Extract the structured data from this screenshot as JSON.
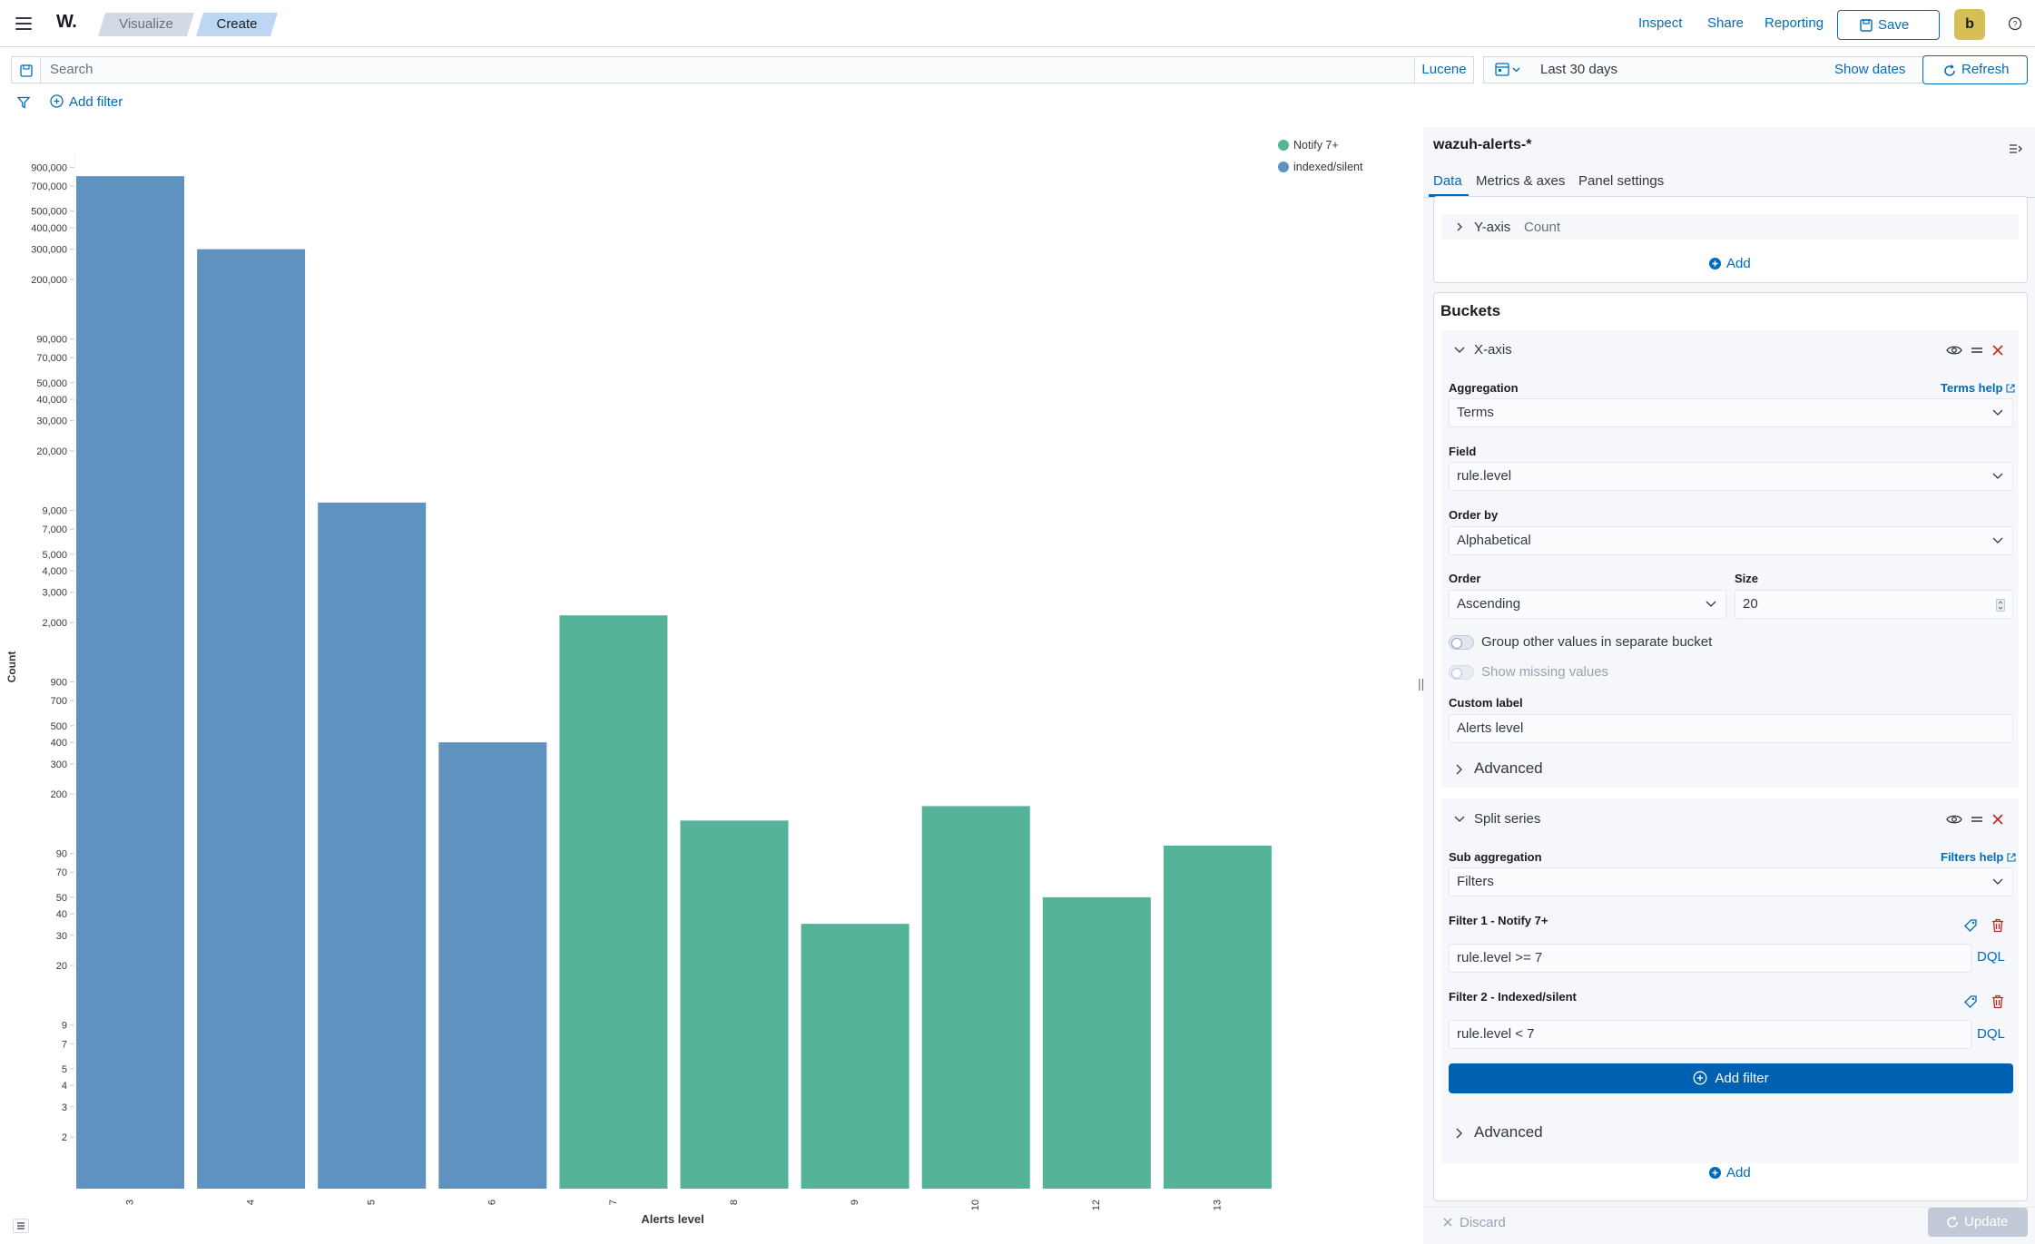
{
  "header": {
    "logo": "W.",
    "breadcrumbs": [
      "Visualize",
      "Create"
    ],
    "links": [
      "Inspect",
      "Share",
      "Reporting"
    ],
    "save_label": "Save",
    "avatar_initial": "b"
  },
  "query_bar": {
    "search_placeholder": "Search",
    "language": "Lucene",
    "date_range": "Last 30 days",
    "show_dates_label": "Show dates",
    "refresh_label": "Refresh",
    "add_filter_label": "Add filter"
  },
  "chart_data": {
    "type": "bar",
    "title": "",
    "xlabel": "Alerts level",
    "ylabel": "Count",
    "yscale": "log",
    "categories": [
      "3",
      "4",
      "5",
      "6",
      "7",
      "8",
      "9",
      "10",
      "12",
      "13"
    ],
    "series": [
      {
        "name": "Notify 7+",
        "color": "#54b399",
        "values": [
          null,
          null,
          null,
          null,
          2200,
          140,
          35,
          170,
          50,
          100
        ]
      },
      {
        "name": "indexed/silent",
        "color": "#6092c0",
        "values": [
          800000,
          300000,
          10000,
          400,
          null,
          null,
          null,
          null,
          null,
          null
        ]
      }
    ],
    "y_tick_labels": [
      "900,000",
      "700,000",
      "500,000",
      "400,000",
      "300,000",
      "200,000",
      "90,000",
      "70,000",
      "50,000",
      "40,000",
      "30,000",
      "20,000",
      "9,000",
      "7,000",
      "5,000",
      "4,000",
      "3,000",
      "2,000",
      "900",
      "700",
      "500",
      "400",
      "300",
      "200",
      "90",
      "70",
      "50",
      "40",
      "30",
      "20",
      "9",
      "7",
      "5",
      "4",
      "3",
      "2"
    ],
    "y_tick_values": [
      900000,
      700000,
      500000,
      400000,
      300000,
      200000,
      90000,
      70000,
      50000,
      40000,
      30000,
      20000,
      9000,
      7000,
      5000,
      4000,
      3000,
      2000,
      900,
      700,
      500,
      400,
      300,
      200,
      90,
      70,
      50,
      40,
      30,
      20,
      9,
      7,
      5,
      4,
      3,
      2
    ],
    "legend": "top-right",
    "grid": false
  },
  "panel": {
    "index_pattern": "wazuh-alerts-*",
    "tabs": [
      "Data",
      "Metrics & axes",
      "Panel settings"
    ],
    "metrics": {
      "yaxis_label": "Y-axis",
      "yaxis_agg": "Count",
      "add_label": "Add"
    },
    "buckets": {
      "title": "Buckets",
      "xaxis": {
        "title": "X-axis",
        "aggregation_label": "Aggregation",
        "aggregation_help": "Terms help",
        "aggregation_value": "Terms",
        "field_label": "Field",
        "field_value": "rule.level",
        "orderby_label": "Order by",
        "orderby_value": "Alphabetical",
        "order_label": "Order",
        "order_value": "Ascending",
        "size_label": "Size",
        "size_value": "20",
        "group_other_label": "Group other values in separate bucket",
        "show_missing_label": "Show missing values",
        "custom_label_label": "Custom label",
        "custom_label_value": "Alerts level",
        "advanced_label": "Advanced"
      },
      "split": {
        "title": "Split series",
        "sub_agg_label": "Sub aggregation",
        "sub_agg_help": "Filters help",
        "sub_agg_value": "Filters",
        "filter1_label": "Filter 1 - Notify 7+",
        "filter1_value": "rule.level >= 7",
        "filter2_label": "Filter 2 - Indexed/silent",
        "filter2_value": "rule.level < 7",
        "dql": "DQL",
        "add_filter_label": "Add filter",
        "advanced_label": "Advanced"
      },
      "add_label": "Add"
    },
    "discard_label": "Discard",
    "update_label": "Update"
  }
}
